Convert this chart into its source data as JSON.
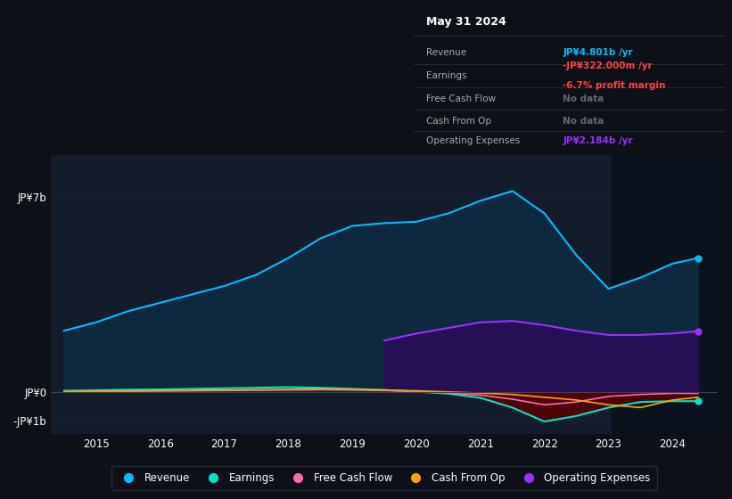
{
  "background_color": "#0d1117",
  "plot_bg_color": "#131c2b",
  "years": [
    2014.5,
    2015,
    2015.5,
    2016,
    2016.5,
    2017,
    2017.5,
    2018,
    2018.5,
    2019,
    2019.5,
    2020,
    2020.5,
    2021,
    2021.5,
    2022,
    2022.5,
    2023,
    2023.5,
    2024,
    2024.4
  ],
  "revenue": [
    2.2,
    2.5,
    2.9,
    3.2,
    3.5,
    3.8,
    4.2,
    4.8,
    5.5,
    5.95,
    6.05,
    6.1,
    6.4,
    6.85,
    7.2,
    6.4,
    4.9,
    3.7,
    4.1,
    4.6,
    4.801
  ],
  "earnings": [
    0.05,
    0.07,
    0.09,
    0.1,
    0.12,
    0.14,
    0.16,
    0.18,
    0.16,
    0.12,
    0.08,
    0.02,
    -0.05,
    -0.2,
    -0.55,
    -1.05,
    -0.85,
    -0.55,
    -0.35,
    -0.32,
    -0.322
  ],
  "free_cash_flow": [
    0.01,
    0.02,
    0.03,
    0.04,
    0.05,
    0.06,
    0.07,
    0.08,
    0.09,
    0.08,
    0.06,
    0.03,
    -0.03,
    -0.1,
    -0.25,
    -0.45,
    -0.35,
    -0.15,
    -0.08,
    -0.04,
    -0.04
  ],
  "cash_from_op": [
    0.02,
    0.04,
    0.05,
    0.06,
    0.07,
    0.08,
    0.09,
    0.1,
    0.12,
    0.1,
    0.08,
    0.05,
    0.01,
    -0.03,
    -0.08,
    -0.18,
    -0.28,
    -0.45,
    -0.55,
    -0.28,
    -0.18
  ],
  "op_expenses_x": [
    2019.5,
    2020,
    2020.5,
    2021,
    2021.5,
    2022,
    2022.5,
    2023,
    2023.5,
    2024,
    2024.4
  ],
  "op_expenses_y": [
    1.85,
    2.1,
    2.3,
    2.5,
    2.55,
    2.4,
    2.2,
    2.05,
    2.05,
    2.1,
    2.184
  ],
  "revenue_color": "#00bfff",
  "earnings_color": "#00e5c8",
  "free_cash_flow_color": "#ff69b4",
  "cash_from_op_color": "#ffa500",
  "op_expenses_color": "#9b30ff",
  "revenue_fill_color": "#0e2840",
  "op_expenses_fill_color": "#261055",
  "earnings_neg_fill_color": "#5c0000",
  "ylim": [
    -1.5,
    8.5
  ],
  "xlim": [
    2014.3,
    2024.7
  ],
  "yticks": [
    -1.0,
    0.0,
    7.0
  ],
  "ytick_labels": [
    "-JP¥1b",
    "JP¥0",
    "JP¥7b"
  ],
  "grid_color": "#1e2a38",
  "legend_items": [
    "Revenue",
    "Earnings",
    "Free Cash Flow",
    "Cash From Op",
    "Operating Expenses"
  ],
  "legend_colors": [
    "#00bfff",
    "#00e5c8",
    "#ff69b4",
    "#ffa500",
    "#9b30ff"
  ],
  "info_box": {
    "title": "May 31 2024",
    "rows": [
      {
        "label": "Revenue",
        "value": "JP¥4.801b /yr",
        "value_color": "#00bfff",
        "sub": null,
        "sub_color": null
      },
      {
        "label": "Earnings",
        "value": "-JP¥322.000m /yr",
        "value_color": "#ff4444",
        "sub": "-6.7% profit margin",
        "sub_color": "#ff4444"
      },
      {
        "label": "Free Cash Flow",
        "value": "No data",
        "value_color": "#666677",
        "sub": null,
        "sub_color": null
      },
      {
        "label": "Cash From Op",
        "value": "No data",
        "value_color": "#666677",
        "sub": null,
        "sub_color": null
      },
      {
        "label": "Operating Expenses",
        "value": "JP¥2.184b /yr",
        "value_color": "#9b30ff",
        "sub": null,
        "sub_color": null
      }
    ]
  },
  "shaded_region_start": 2023.05,
  "xtick_positions": [
    2015,
    2016,
    2017,
    2018,
    2019,
    2020,
    2021,
    2022,
    2023,
    2024
  ]
}
